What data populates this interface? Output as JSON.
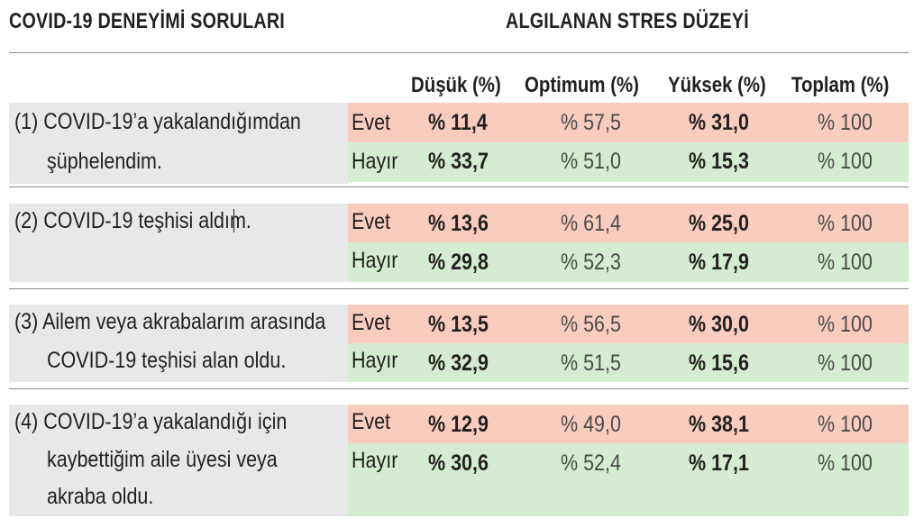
{
  "header": {
    "left_title": "COVID-19 DENEYİMİ SORULARI",
    "right_title": "ALGILANAN STRES DÜZEYİ"
  },
  "columns": [
    "Düşük (%)",
    "Optimum (%)",
    "Yüksek (%)",
    "Toplam (%)"
  ],
  "colors": {
    "evet_band": "#f9cdbd",
    "hayir_band": "#d4ecd0",
    "question_cell": "#e8e8ea"
  },
  "questions": [
    {
      "number": "(1)",
      "lines": [
        "(1) COVID-19’a yakalandığımdan",
        "şüphelendim."
      ],
      "rows": [
        {
          "label": "Evet",
          "dusuk": "% 11,4",
          "optimum": "% 57,5",
          "yuksek": "% 31,0",
          "toplam": "% 100"
        },
        {
          "label": "Hayır",
          "dusuk": "% 33,7",
          "optimum": "% 51,0",
          "yuksek": "% 15,3",
          "toplam": "% 100"
        }
      ]
    },
    {
      "number": "(2)",
      "lines": [
        "(2) COVID-19 teşhisi aldım."
      ],
      "rows": [
        {
          "label": "Evet",
          "dusuk": "% 13,6",
          "optimum": "% 61,4",
          "yuksek": "% 25,0",
          "toplam": "% 100"
        },
        {
          "label": "Hayır",
          "dusuk": "% 29,8",
          "optimum": "% 52,3",
          "yuksek": "% 17,9",
          "toplam": "% 100"
        }
      ]
    },
    {
      "number": "(3)",
      "lines": [
        "(3) Ailem veya akrabalarım arasında",
        "COVID-19 teşhisi alan oldu."
      ],
      "rows": [
        {
          "label": "Evet",
          "dusuk": "% 13,5",
          "optimum": "% 56,5",
          "yuksek": "% 30,0",
          "toplam": "% 100"
        },
        {
          "label": "Hayır",
          "dusuk": "% 32,9",
          "optimum": "% 51,5",
          "yuksek": "% 15,6",
          "toplam": "% 100"
        }
      ]
    },
    {
      "number": "(4)",
      "lines": [
        "(4) COVID-19’a yakalandığı için",
        "kaybettiğim aile üyesi veya",
        "akraba oldu."
      ],
      "rows": [
        {
          "label": "Evet",
          "dusuk": "% 12,9",
          "optimum": "% 49,0",
          "yuksek": "% 38,1",
          "toplam": "% 100"
        },
        {
          "label": "Hayır",
          "dusuk": "% 30,6",
          "optimum": "% 52,4",
          "yuksek": "% 17,1",
          "toplam": "% 100"
        }
      ]
    }
  ]
}
